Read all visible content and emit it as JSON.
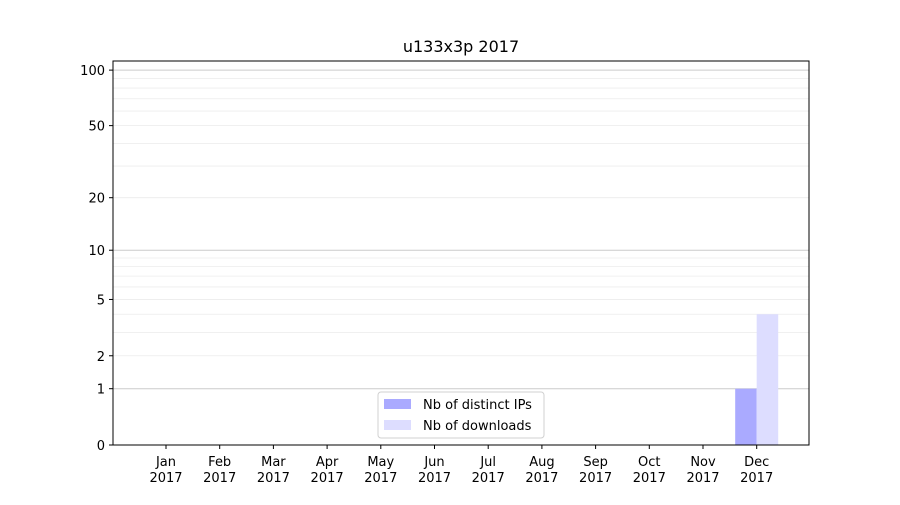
{
  "chart_data": {
    "type": "bar",
    "title": "u133x3p 2017",
    "categories": [
      "Jan\n2017",
      "Feb\n2017",
      "Mar\n2017",
      "Apr\n2017",
      "May\n2017",
      "Jun\n2017",
      "Jul\n2017",
      "Aug\n2017",
      "Sep\n2017",
      "Oct\n2017",
      "Nov\n2017",
      "Dec\n2017"
    ],
    "series": [
      {
        "name": "Nb of distinct IPs",
        "color": "#aaaaff",
        "values": [
          0,
          0,
          0,
          0,
          0,
          0,
          0,
          0,
          0,
          0,
          0,
          1
        ]
      },
      {
        "name": "Nb of downloads",
        "color": "#ddddff",
        "values": [
          0,
          0,
          0,
          0,
          0,
          0,
          0,
          0,
          0,
          0,
          0,
          4
        ]
      }
    ],
    "yscale": "log(y+1)",
    "yticks": [
      0,
      1,
      2,
      5,
      10,
      20,
      50,
      100
    ],
    "ylim": [
      0,
      112
    ],
    "xlabel": "",
    "ylabel": "",
    "grid": true,
    "legend": "lower center"
  }
}
